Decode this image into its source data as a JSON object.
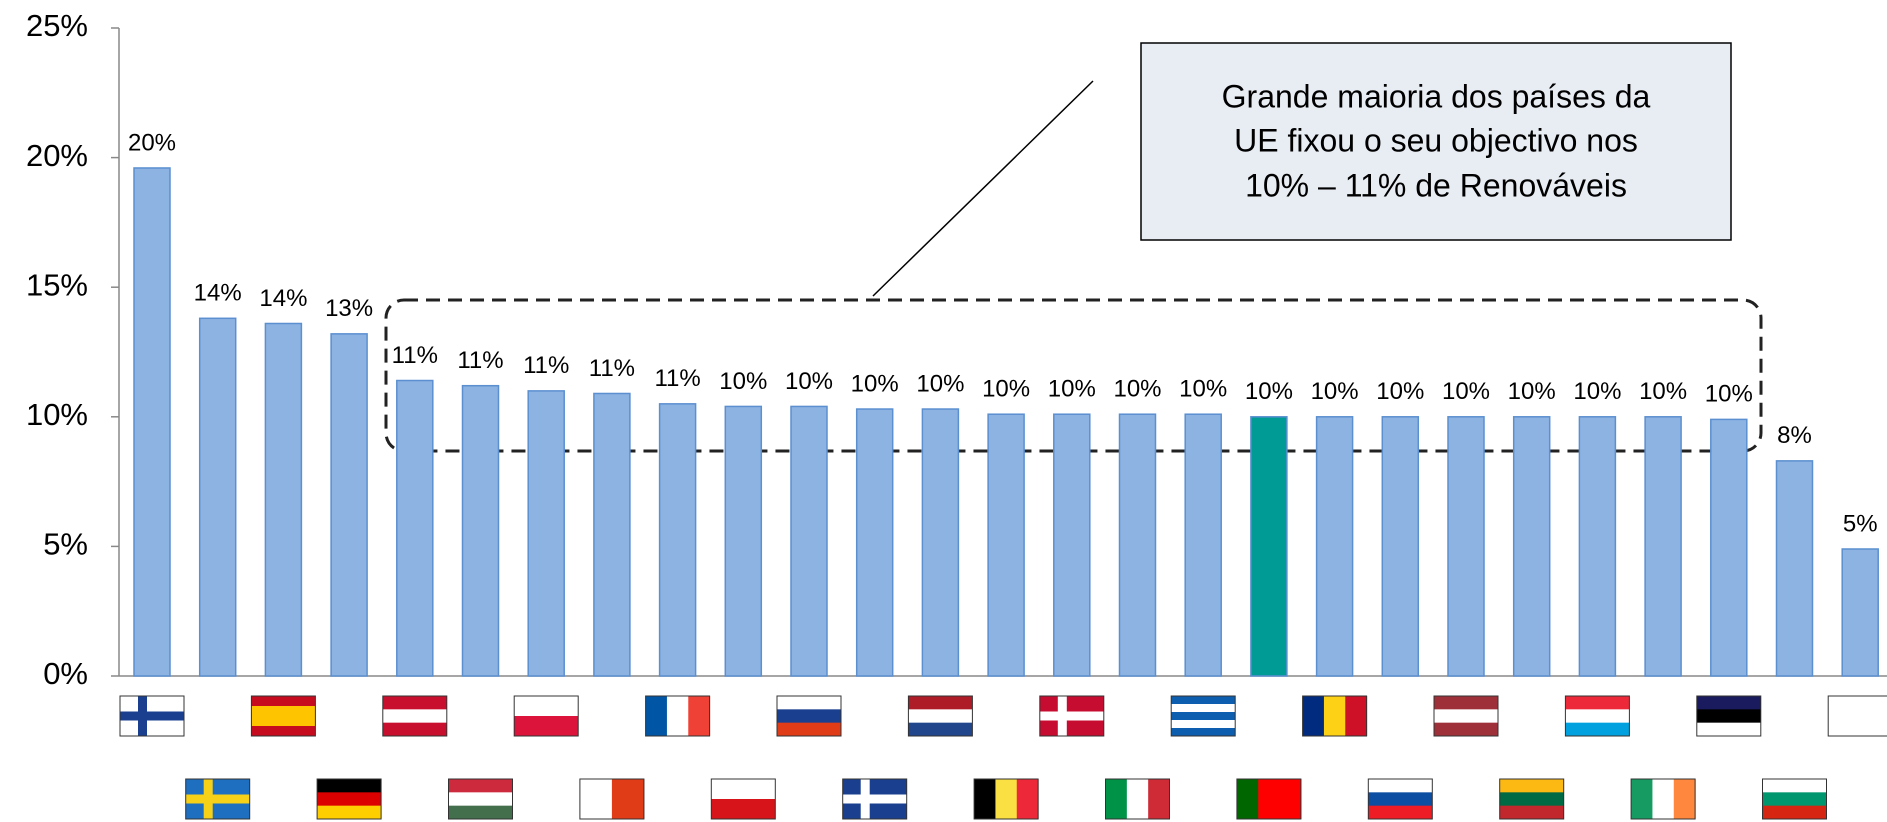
{
  "chart_data": {
    "type": "bar",
    "categories": [
      null,
      null,
      null,
      null,
      null,
      null,
      null,
      null,
      null,
      null,
      null,
      null,
      null,
      null,
      null,
      null,
      null,
      null,
      null,
      null,
      null,
      null,
      null,
      null,
      null,
      null,
      null
    ],
    "values": [
      19.6,
      13.8,
      13.6,
      13.2,
      11.4,
      11.2,
      11.0,
      10.9,
      10.5,
      10.4,
      10.4,
      10.3,
      10.3,
      10.1,
      10.1,
      10.1,
      10.1,
      10.0,
      10.0,
      10.0,
      10.0,
      10.0,
      10.0,
      10.0,
      9.9,
      8.3,
      4.9
    ],
    "value_labels": [
      "20%",
      "14%",
      "14%",
      "13%",
      "11%",
      "11%",
      "11%",
      "11%",
      "11%",
      "10%",
      "10%",
      "10%",
      "10%",
      "10%",
      "10%",
      "10%",
      "10%",
      "10%",
      "10%",
      "10%",
      "10%",
      "10%",
      "10%",
      "10%",
      "10%",
      "8%",
      "5%"
    ],
    "colors": [
      "#8db3e2",
      "#8db3e2",
      "#8db3e2",
      "#8db3e2",
      "#8db3e2",
      "#8db3e2",
      "#8db3e2",
      "#8db3e2",
      "#8db3e2",
      "#8db3e2",
      "#8db3e2",
      "#8db3e2",
      "#8db3e2",
      "#8db3e2",
      "#8db3e2",
      "#8db3e2",
      "#8db3e2",
      "#009b95",
      "#8db3e2",
      "#8db3e2",
      "#8db3e2",
      "#8db3e2",
      "#8db3e2",
      "#8db3e2",
      "#8db3e2",
      "#8db3e2",
      "#8db3e2"
    ],
    "ylim": [
      0,
      25
    ],
    "yticks": [
      {
        "value": 0,
        "label": "0%"
      },
      {
        "value": 5,
        "label": "5%"
      },
      {
        "value": 10,
        "label": "10%"
      },
      {
        "value": 15,
        "label": "15%"
      },
      {
        "value": 20,
        "label": "20%"
      },
      {
        "value": 25,
        "label": "25%"
      }
    ],
    "annotation": [
      "Grande maioria dos países da",
      "UE fixou o seu objectivo nos",
      "10% – 11% de Renováveis"
    ]
  }
}
